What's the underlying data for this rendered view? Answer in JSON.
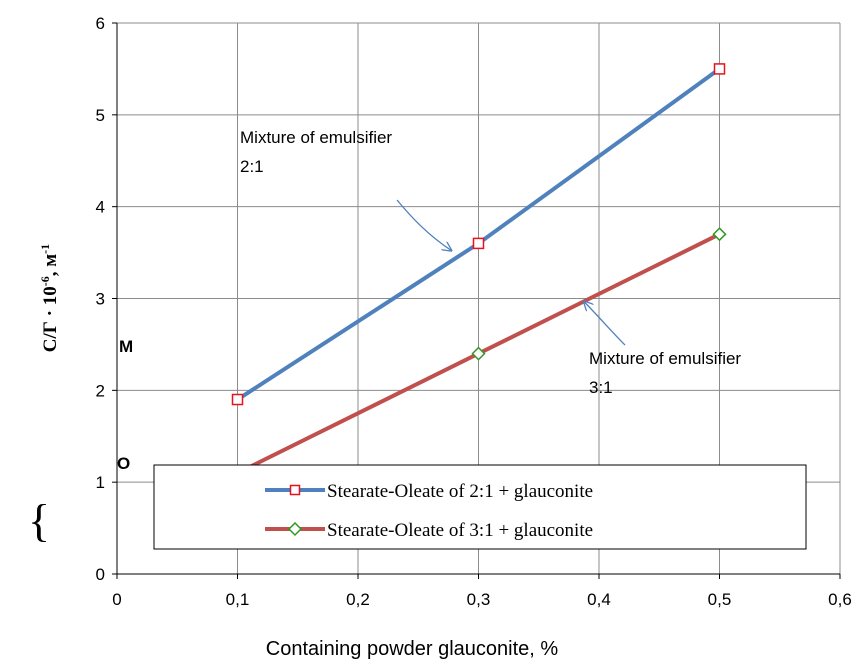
{
  "chart_data": {
    "type": "line",
    "xlabel": "Containing powder glauconite, %",
    "ylabel": "С/Г · 10",
    "ylabel_exp1": "-6",
    "ylabel_unit": ", м",
    "ylabel_exp2": "-1",
    "xlim": [
      0,
      0.6
    ],
    "ylim": [
      0,
      6
    ],
    "x_ticks": [
      "0",
      "0,1",
      "0,2",
      "0,3",
      "0,4",
      "0,5",
      "0,6"
    ],
    "y_ticks": [
      "0",
      "1",
      "2",
      "3",
      "4",
      "5",
      "6"
    ],
    "grid": true,
    "legend_position": "lower-right",
    "series": [
      {
        "name": "Stearate-Oleate of 2:1 + glauconite",
        "color": "#4F81BD",
        "marker": "square",
        "marker_color": "#E8111C",
        "x": [
          0.1,
          0.3,
          0.5
        ],
        "y": [
          1.9,
          3.6,
          5.5
        ]
      },
      {
        "name": "Stearate-Oleate of 3:1 + glauconite",
        "color": "#C0504D",
        "marker": "diamond",
        "marker_color": "#2E9A1E",
        "x": [
          0.1,
          0.3,
          0.5
        ],
        "y": [
          1.1,
          2.4,
          3.7
        ]
      }
    ],
    "annotations": [
      {
        "line1": "Mixture of emulsifier",
        "line2": "2:1",
        "target": [
          0.28,
          3.5
        ]
      },
      {
        "line1": "Mixture of emulsifier",
        "line2": "3:1",
        "target": [
          0.385,
          3.0
        ]
      }
    ],
    "stray_labels": [
      "М",
      "О",
      "{"
    ]
  }
}
